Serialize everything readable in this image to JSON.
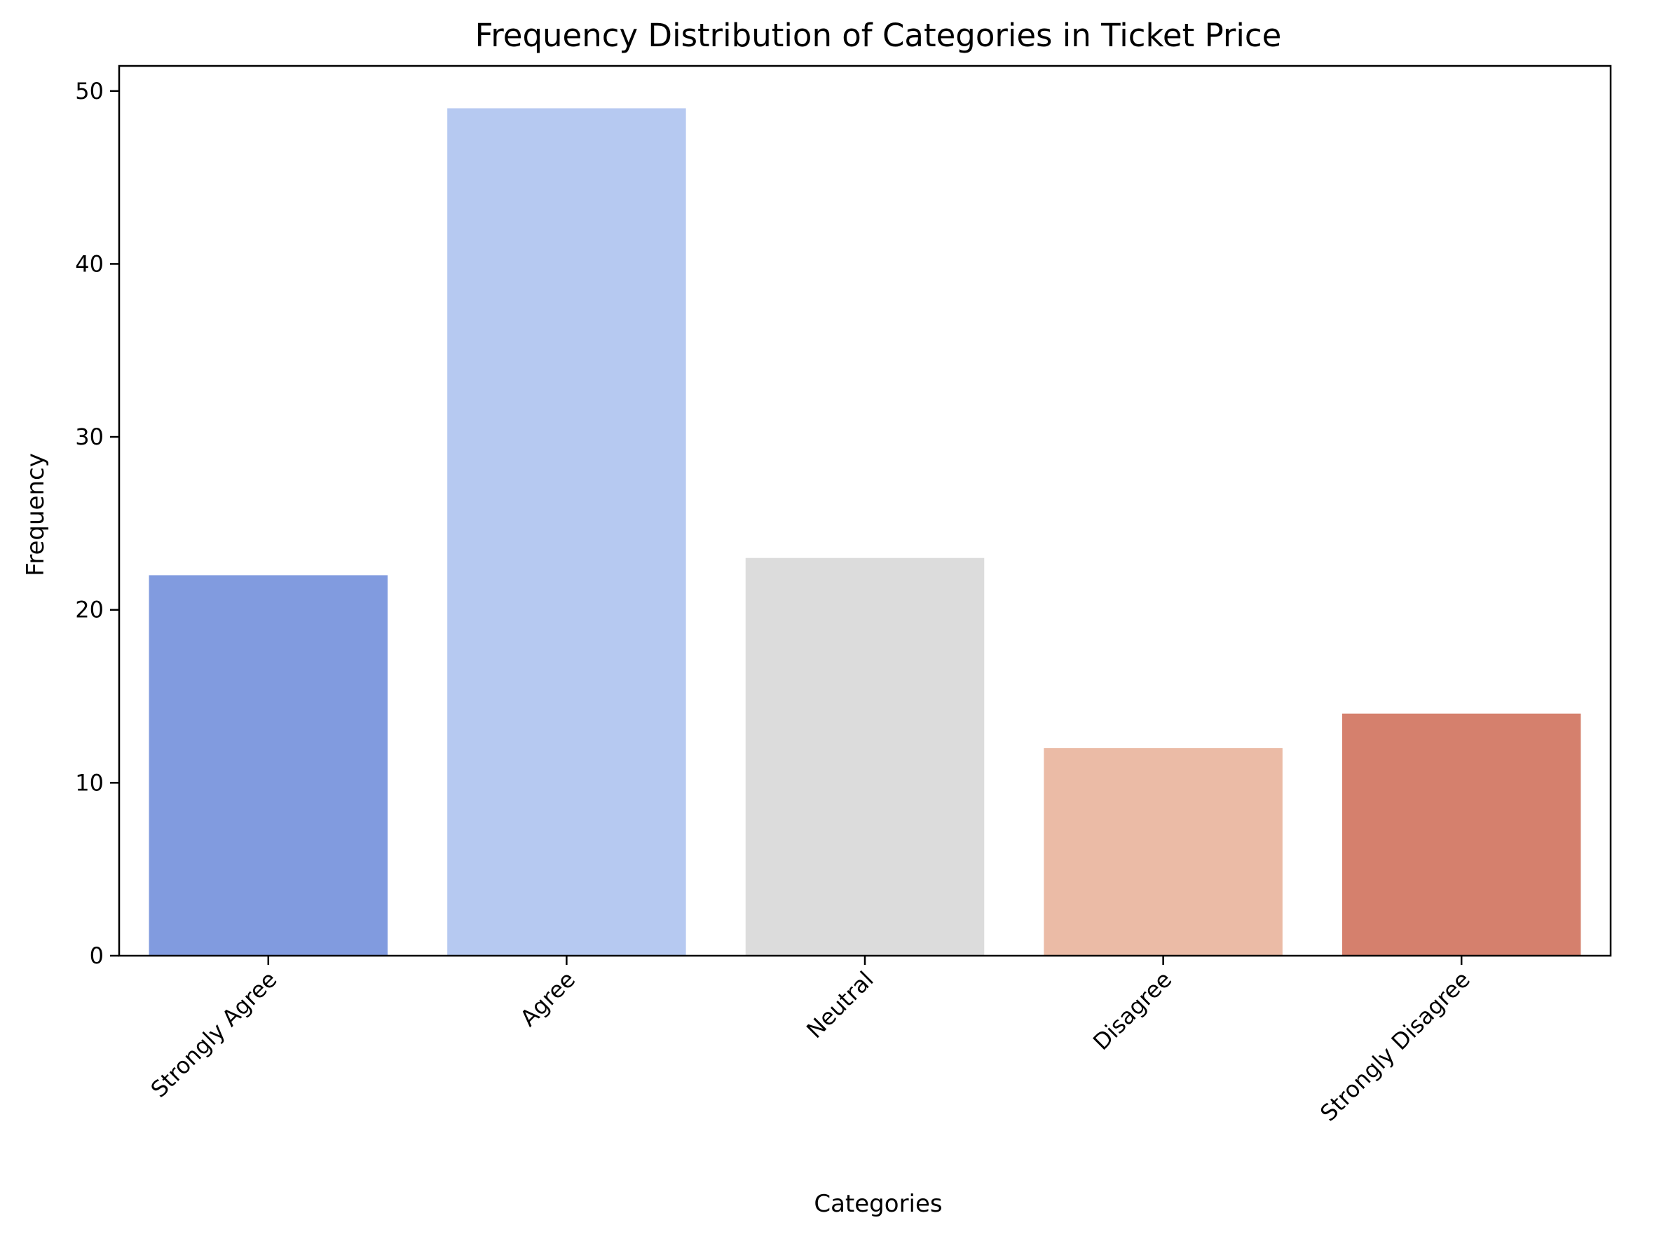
{
  "chart_data": {
    "type": "bar",
    "title": "Frequency Distribution of Categories in Ticket Price",
    "xlabel": "Categories",
    "ylabel": "Frequency",
    "categories": [
      "Strongly Agree",
      "Agree",
      "Neutral",
      "Disagree",
      "Strongly Disagree"
    ],
    "values": [
      22,
      49,
      23,
      12,
      14
    ],
    "colors": [
      "#819bdf",
      "#b6c9f1",
      "#dcdcdc",
      "#ebbba6",
      "#d5806d"
    ],
    "ylim": [
      0,
      51.45
    ],
    "yticks": [
      0,
      10,
      20,
      30,
      40,
      50
    ],
    "grid": false,
    "legend": "none"
  }
}
